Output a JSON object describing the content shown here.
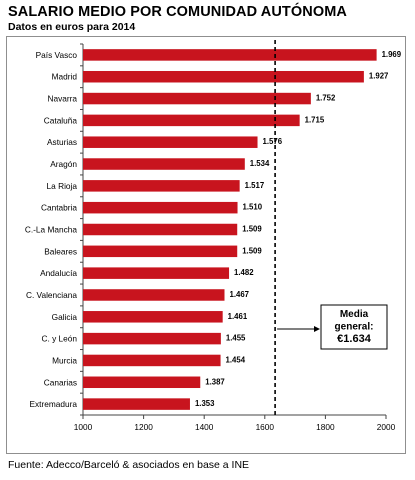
{
  "chart_data": {
    "type": "bar",
    "orientation": "horizontal",
    "title": "SALARIO MEDIO POR COMUNIDAD AUTÓNOMA",
    "subtitle": "Datos en euros para 2014",
    "categories": [
      "País Vasco",
      "Madrid",
      "Navarra",
      "Cataluña",
      "Asturias",
      "Aragón",
      "La Rioja",
      "Cantabria",
      "C.-La Mancha",
      "Baleares",
      "Andalucía",
      "C. Valenciana",
      "Galicia",
      "C. y León",
      "Murcia",
      "Canarias",
      "Extremadura"
    ],
    "values": [
      1969,
      1927,
      1752,
      1715,
      1576,
      1534,
      1517,
      1510,
      1509,
      1509,
      1482,
      1467,
      1461,
      1455,
      1454,
      1387,
      1353
    ],
    "value_labels": [
      "1.969",
      "1.927",
      "1.752",
      "1.715",
      "1.576",
      "1.534",
      "1.517",
      "1.510",
      "1.509",
      "1.509",
      "1.482",
      "1.467",
      "1.461",
      "1.455",
      "1.454",
      "1.387",
      "1.353"
    ],
    "xlim": [
      1000,
      2000
    ],
    "xticks": [
      1000,
      1200,
      1400,
      1600,
      1800,
      2000
    ],
    "xtick_labels": [
      "1000",
      "1200",
      "1400",
      "1600",
      "1800",
      "2000"
    ],
    "bar_color": "#c8141e",
    "reference_line": {
      "value": 1634,
      "style": "dashed",
      "annotation_lines": [
        "Media",
        "general:",
        "€1.634"
      ]
    },
    "grid": false,
    "legend": "none"
  },
  "source": "Fuente: Adecco/Barceló & asociados en base a INE"
}
